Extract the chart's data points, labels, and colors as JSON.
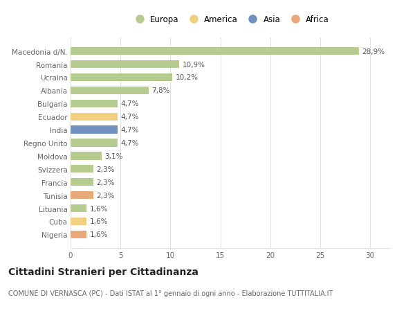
{
  "categories": [
    "Macedonia d/N.",
    "Romania",
    "Ucraina",
    "Albania",
    "Bulgaria",
    "Ecuador",
    "India",
    "Regno Unito",
    "Moldova",
    "Svizzera",
    "Francia",
    "Tunisia",
    "Lituania",
    "Cuba",
    "Nigeria"
  ],
  "values": [
    28.9,
    10.9,
    10.2,
    7.8,
    4.7,
    4.7,
    4.7,
    4.7,
    3.1,
    2.3,
    2.3,
    2.3,
    1.6,
    1.6,
    1.6
  ],
  "labels": [
    "28,9%",
    "10,9%",
    "10,2%",
    "7,8%",
    "4,7%",
    "4,7%",
    "4,7%",
    "4,7%",
    "3,1%",
    "2,3%",
    "2,3%",
    "2,3%",
    "1,6%",
    "1,6%",
    "1,6%"
  ],
  "colors": [
    "#b5cc8e",
    "#b5cc8e",
    "#b5cc8e",
    "#b5cc8e",
    "#b5cc8e",
    "#f0d080",
    "#7090c0",
    "#b5cc8e",
    "#b5cc8e",
    "#b5cc8e",
    "#b5cc8e",
    "#e8a878",
    "#b5cc8e",
    "#f0d080",
    "#e8a878"
  ],
  "legend_labels": [
    "Europa",
    "America",
    "Asia",
    "Africa"
  ],
  "legend_colors": [
    "#b5cc8e",
    "#f0d080",
    "#7090c0",
    "#e8a878"
  ],
  "xlim": [
    0,
    32
  ],
  "xticks": [
    0,
    5,
    10,
    15,
    20,
    25,
    30
  ],
  "title": "Cittadini Stranieri per Cittadinanza",
  "subtitle": "COMUNE DI VERNASCA (PC) - Dati ISTAT al 1° gennaio di ogni anno - Elaborazione TUTTITALIA.IT",
  "plot_bg_color": "#ffffff",
  "fig_bg_color": "#ffffff",
  "grid_color": "#e0e0e0",
  "bar_label_color": "#555555",
  "tick_label_color": "#666666",
  "label_fontsize": 7.5,
  "tick_fontsize": 7.5,
  "title_fontsize": 10,
  "subtitle_fontsize": 7,
  "legend_fontsize": 8.5,
  "bar_height": 0.6
}
